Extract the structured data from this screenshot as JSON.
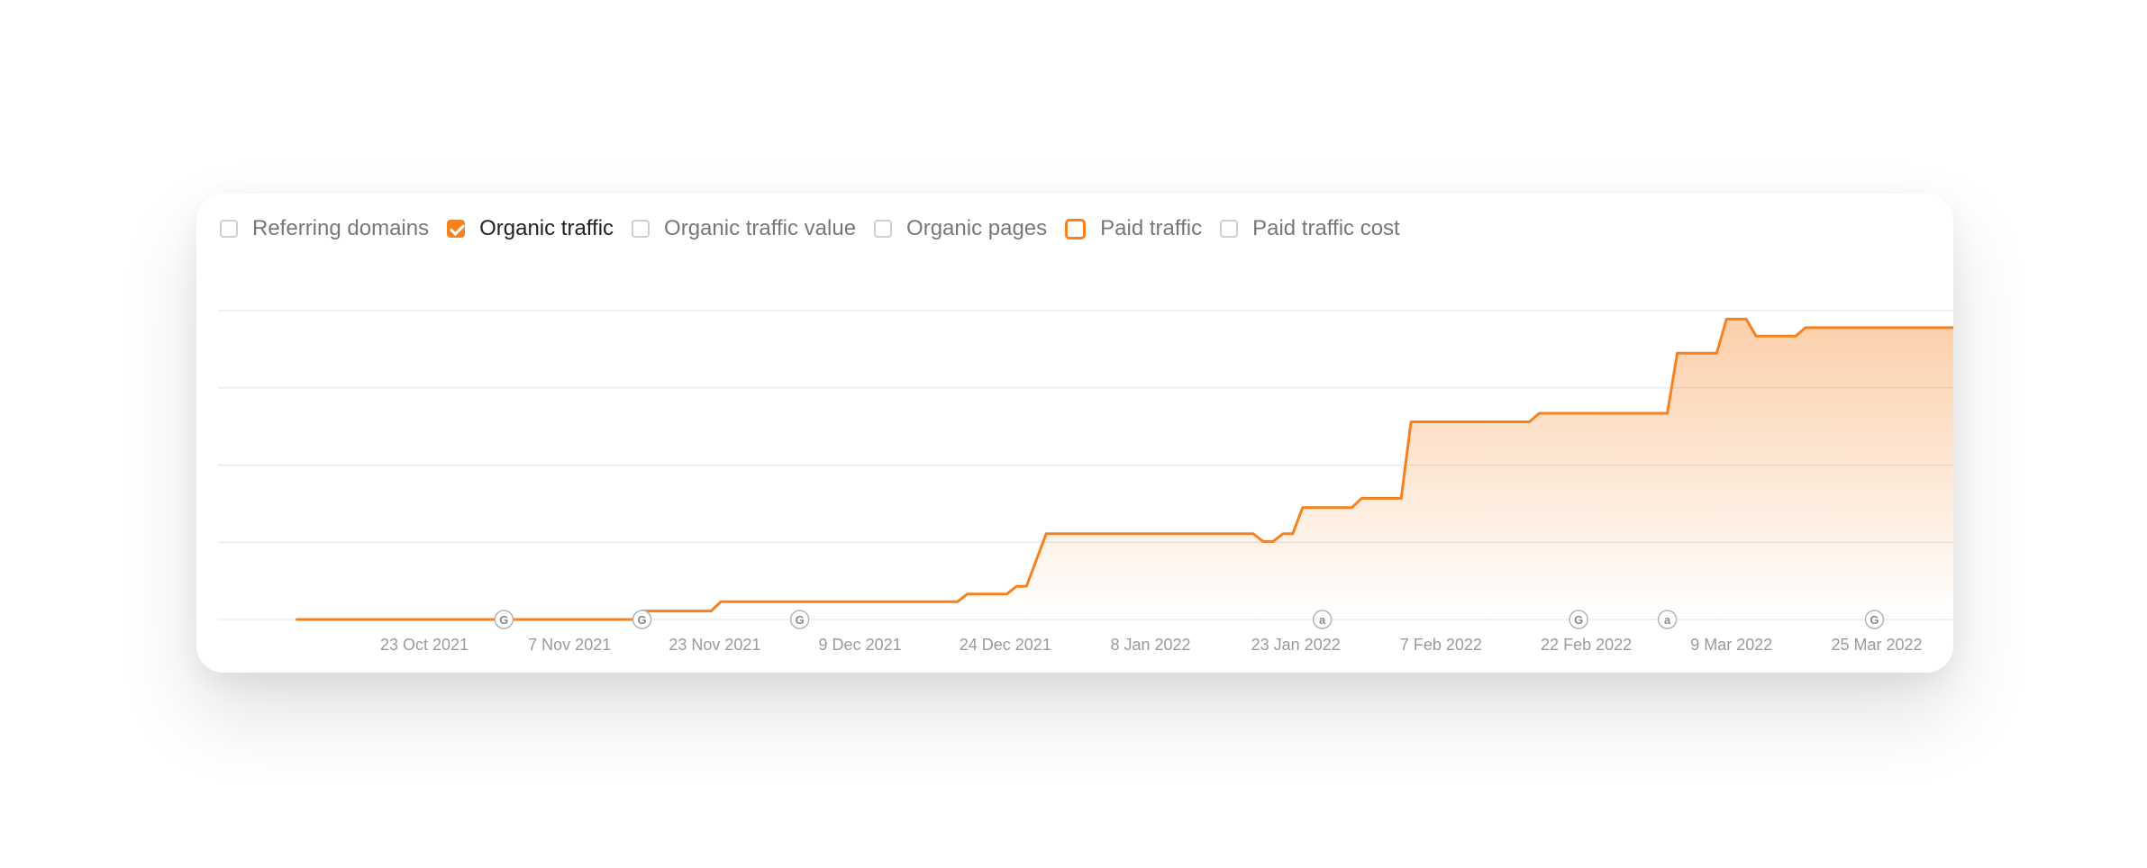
{
  "legend": [
    {
      "label": "Referring domains",
      "state": "unchecked"
    },
    {
      "label": "Organic traffic",
      "state": "checked"
    },
    {
      "label": "Organic traffic value",
      "state": "unchecked"
    },
    {
      "label": "Organic pages",
      "state": "unchecked"
    },
    {
      "label": "Paid traffic",
      "state": "outlined"
    },
    {
      "label": "Paid traffic cost",
      "state": "unchecked"
    }
  ],
  "colors": {
    "accent": "#f5821f",
    "grid": "#e6e6e6",
    "tick": "#9a9a9a"
  },
  "chart_data": {
    "type": "area",
    "title": "",
    "xlabel": "",
    "ylabel": "",
    "grid": true,
    "y_tick_labels_shown": false,
    "xlim": [
      "2021-10-07",
      "2022-04-01"
    ],
    "ylim": [
      0,
      4
    ],
    "x_ticks": [
      "23 Oct 2021",
      "7 Nov 2021",
      "23 Nov 2021",
      "9 Dec 2021",
      "24 Dec 2021",
      "8 Jan 2022",
      "23 Jan 2022",
      "7 Feb 2022",
      "22 Feb 2022",
      "9 Mar 2022",
      "25 Mar 2022"
    ],
    "series": [
      {
        "name": "Organic traffic",
        "color": "#f5821f",
        "points": [
          [
            "2021-10-15",
            0
          ],
          [
            "2021-11-18",
            0
          ],
          [
            "2021-11-19",
            0.11
          ],
          [
            "2021-11-26",
            0.11
          ],
          [
            "2021-11-27",
            0.23
          ],
          [
            "2021-12-21",
            0.23
          ],
          [
            "2021-12-22",
            0.33
          ],
          [
            "2021-12-26",
            0.33
          ],
          [
            "2021-12-27",
            0.43
          ],
          [
            "2021-12-28",
            0.43
          ],
          [
            "2021-12-30",
            1.11
          ],
          [
            "2022-01-20",
            1.11
          ],
          [
            "2022-01-21",
            1.01
          ],
          [
            "2022-01-22",
            1.01
          ],
          [
            "2022-01-23",
            1.11
          ],
          [
            "2022-01-24",
            1.11
          ],
          [
            "2022-01-25",
            1.45
          ],
          [
            "2022-01-30",
            1.45
          ],
          [
            "2022-01-31",
            1.57
          ],
          [
            "2022-02-04",
            1.57
          ],
          [
            "2022-02-05",
            2.56
          ],
          [
            "2022-02-17",
            2.56
          ],
          [
            "2022-02-18",
            2.67
          ],
          [
            "2022-03-03",
            2.67
          ],
          [
            "2022-03-04",
            3.45
          ],
          [
            "2022-03-08",
            3.45
          ],
          [
            "2022-03-09",
            3.89
          ],
          [
            "2022-03-11",
            3.89
          ],
          [
            "2022-03-12",
            3.67
          ],
          [
            "2022-03-16",
            3.67
          ],
          [
            "2022-03-17",
            3.78
          ],
          [
            "2022-04-01",
            3.78
          ]
        ]
      }
    ],
    "annotations": [
      {
        "date": "2021-11-05",
        "label": "G"
      },
      {
        "date": "2021-11-19",
        "label": "G"
      },
      {
        "date": "2021-12-05",
        "label": "G"
      },
      {
        "date": "2022-01-27",
        "label": "a"
      },
      {
        "date": "2022-02-22",
        "label": "G"
      },
      {
        "date": "2022-03-03",
        "label": "a"
      },
      {
        "date": "2022-03-24",
        "label": "G"
      }
    ]
  }
}
